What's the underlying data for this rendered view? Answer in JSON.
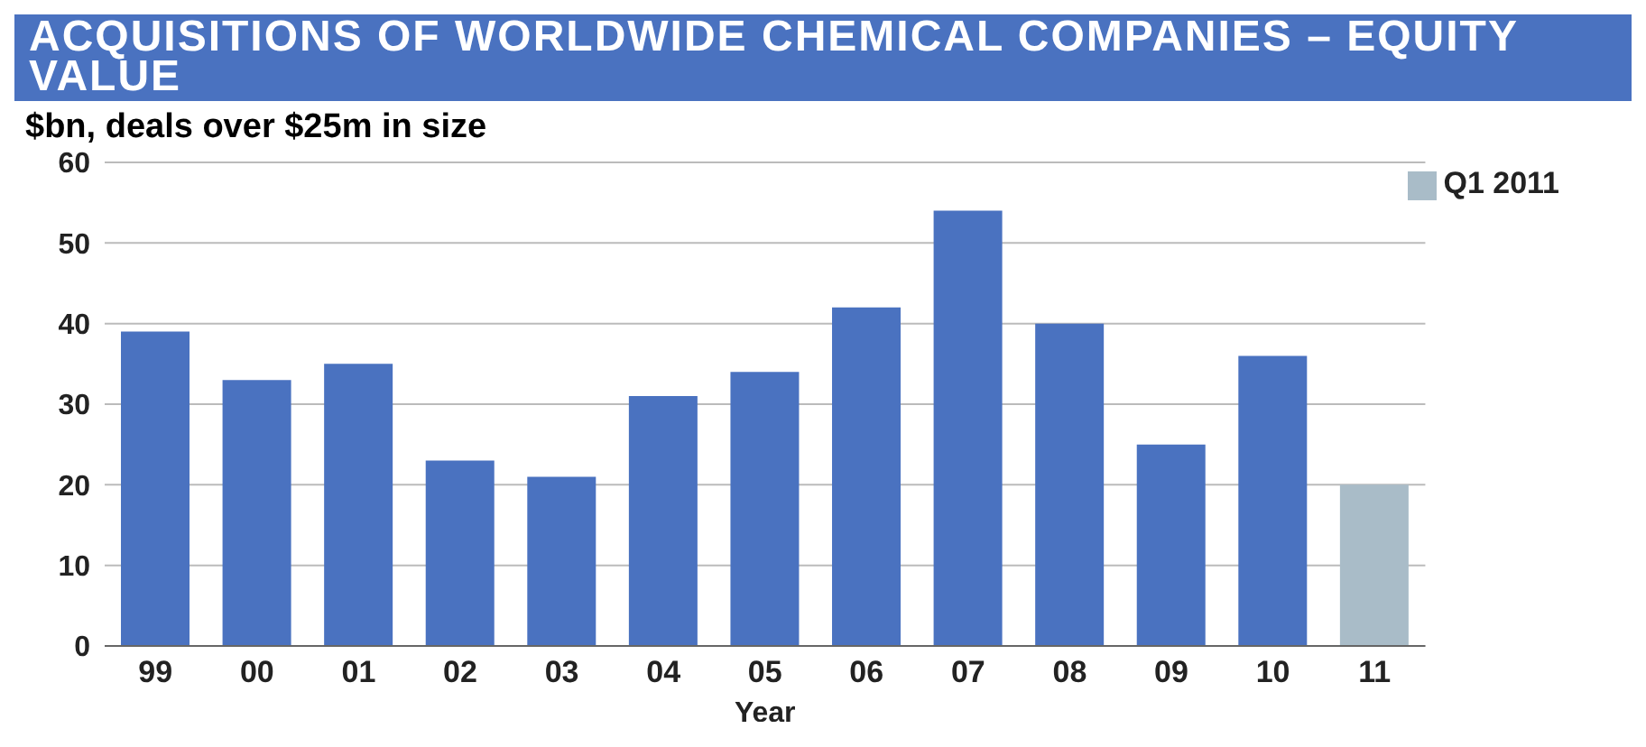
{
  "chart_data": {
    "type": "bar",
    "title": "ACQUISITIONS OF WORLDWIDE CHEMICAL COMPANIES – EQUITY VALUE",
    "subtitle": "$bn, deals over $25m in size",
    "xlabel": "Year",
    "categories": [
      "99",
      "00",
      "01",
      "02",
      "03",
      "04",
      "05",
      "06",
      "07",
      "08",
      "09",
      "10",
      "11"
    ],
    "series": [
      {
        "color": "#4a72c0",
        "values": [
          39,
          33,
          35,
          23,
          21,
          31,
          34,
          42,
          54,
          40,
          25,
          36,
          null
        ]
      },
      {
        "name": "Q1 2011",
        "color": "#a9bcc8",
        "values": [
          null,
          null,
          null,
          null,
          null,
          null,
          null,
          null,
          null,
          null,
          null,
          null,
          20
        ]
      }
    ],
    "stacked": true,
    "ylim": [
      0,
      60
    ],
    "yticks": [
      0,
      10,
      20,
      30,
      40,
      50,
      60
    ],
    "grid": "y",
    "legend": "top right"
  }
}
